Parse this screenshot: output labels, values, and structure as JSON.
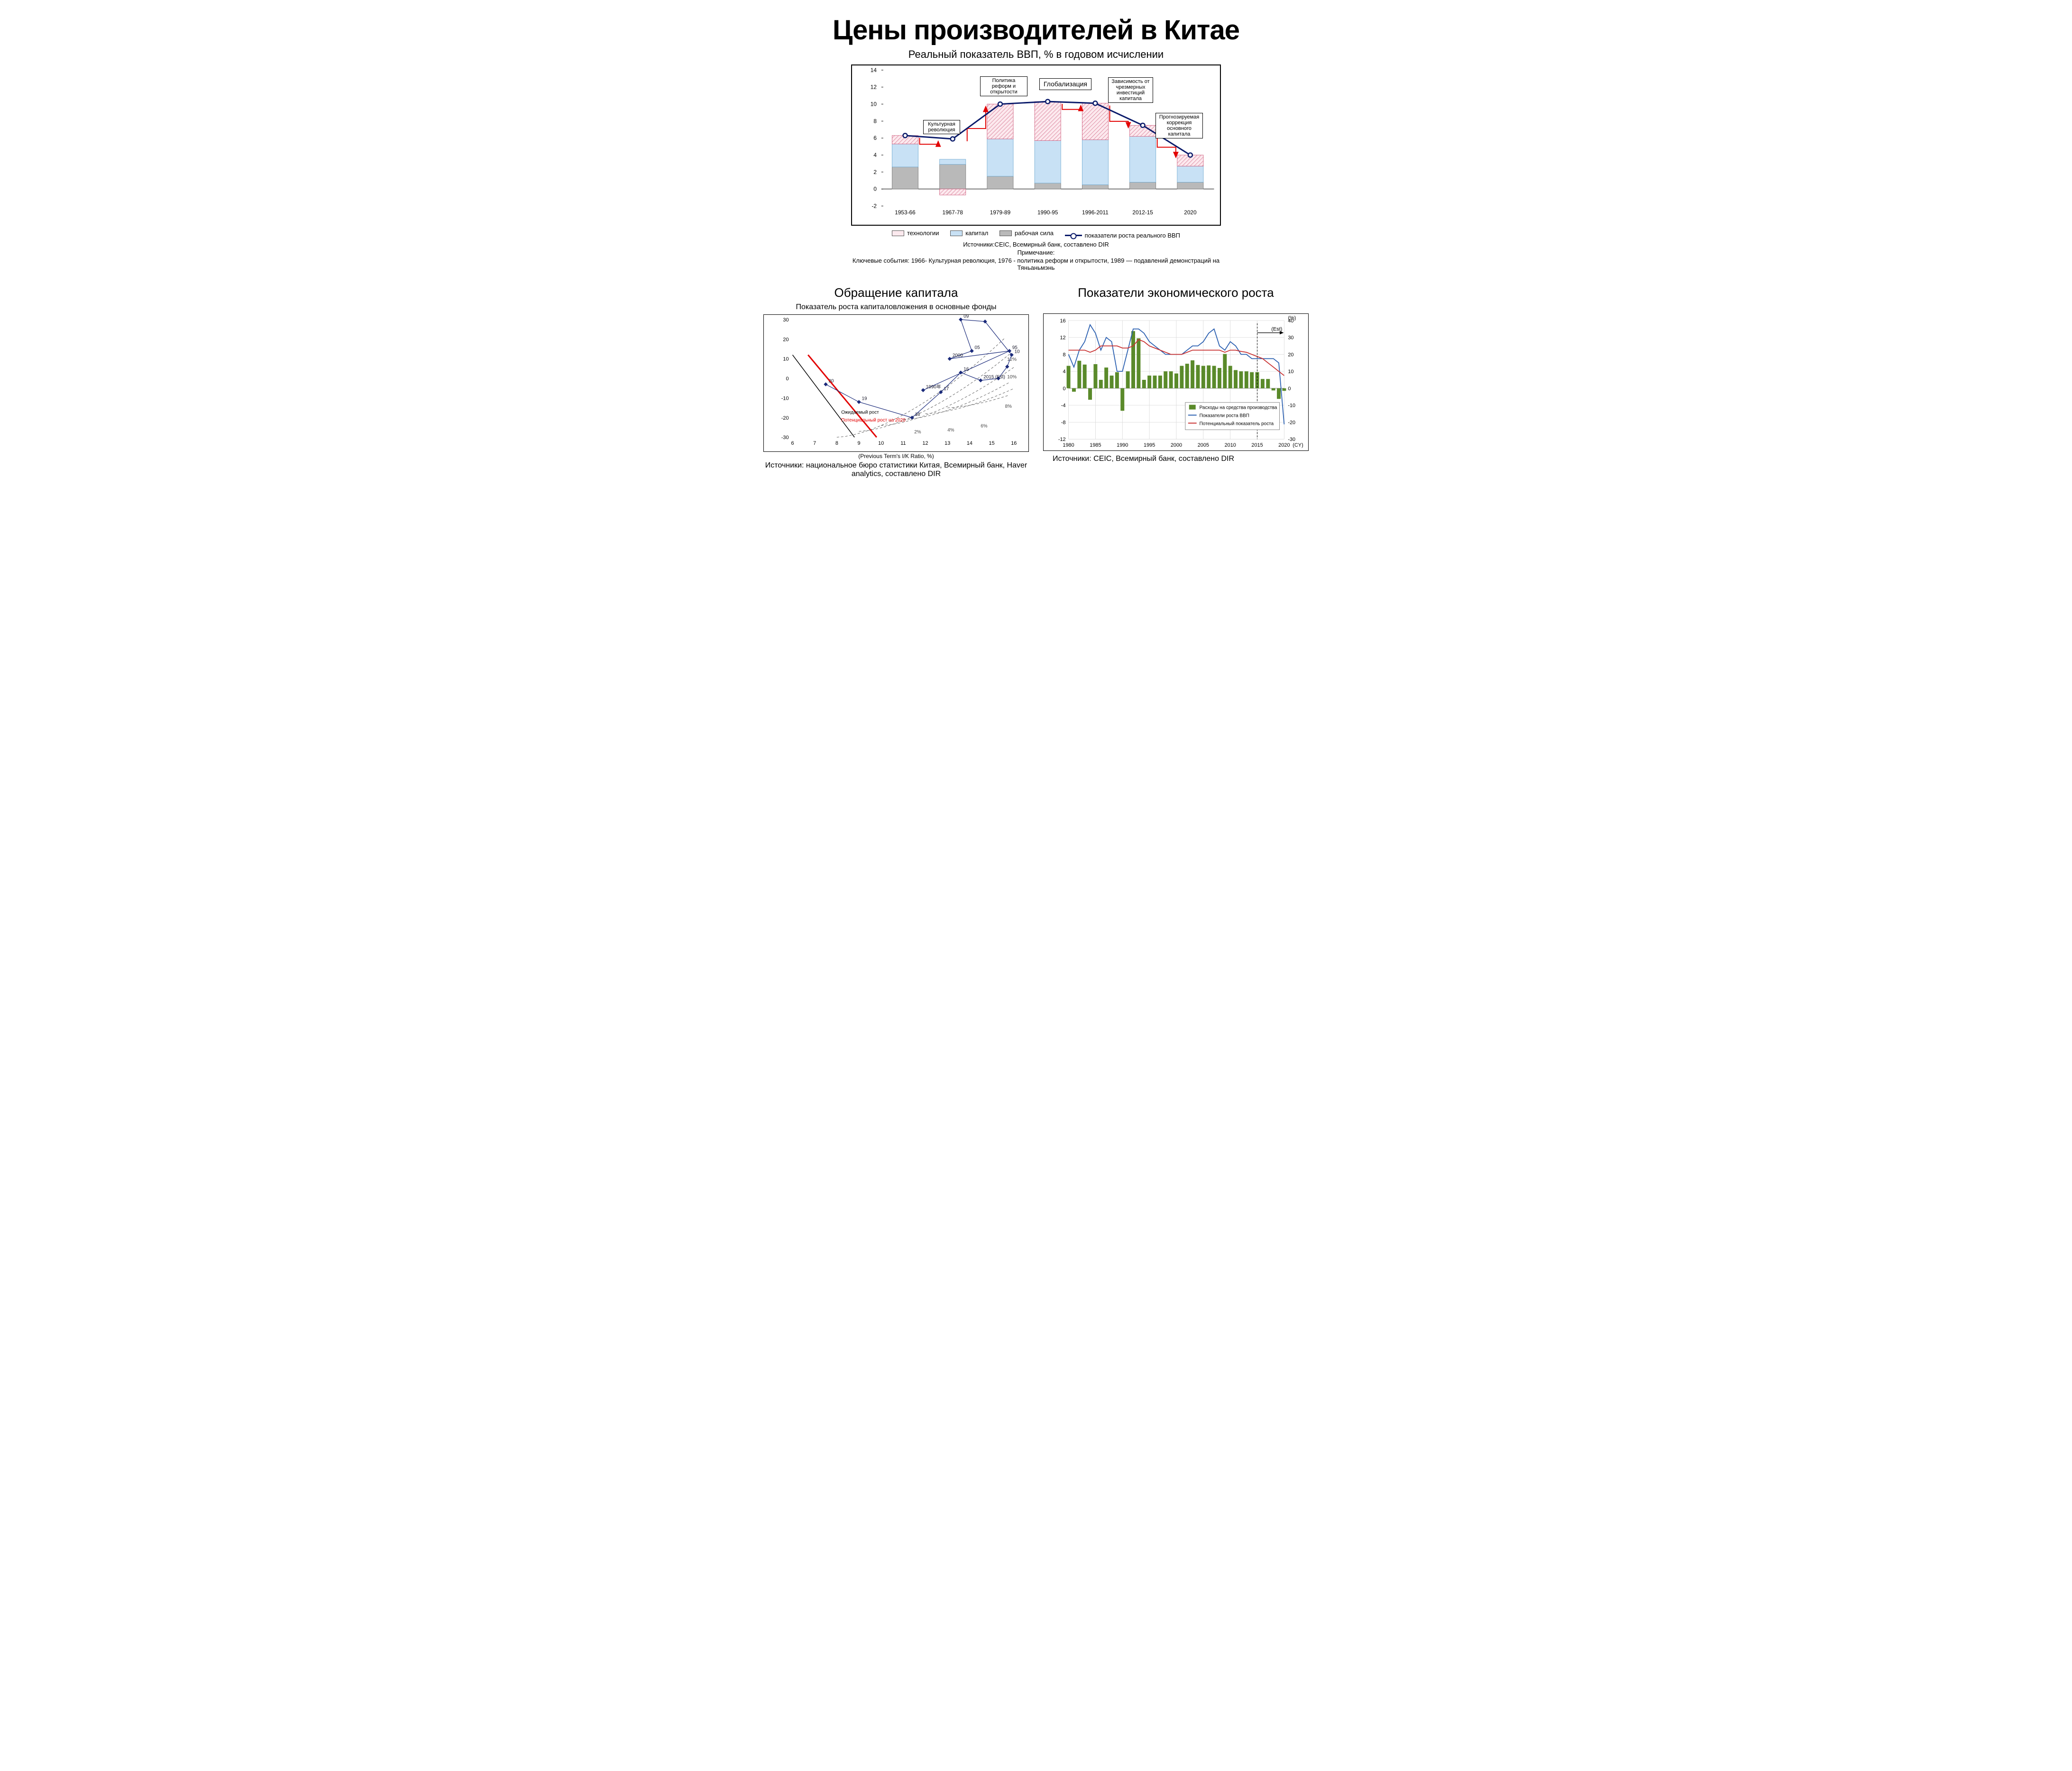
{
  "title": "Цены производителей в Китае",
  "chart1": {
    "subtitle": "Реальный показатель ВВП, % в годовом исчислении",
    "type": "stacked-bar-with-line",
    "y": {
      "min": -2,
      "max": 14,
      "step": 2,
      "ticks": [
        -2,
        0,
        2,
        4,
        6,
        8,
        10,
        12,
        14
      ]
    },
    "categories": [
      "1953-66",
      "1967-78",
      "1979-89",
      "1990-95",
      "1996-2011",
      "2012-15",
      "2020"
    ],
    "series": {
      "labor": {
        "label": "рабочая сила",
        "color_fill": "#b9b9b9",
        "color_stroke": "#777",
        "values": [
          2.6,
          2.9,
          1.5,
          0.7,
          0.5,
          0.8,
          0.8
        ]
      },
      "capital": {
        "label": "капитал",
        "color_fill": "#c8e1f5",
        "color_stroke": "#6aa7cf",
        "values": [
          2.7,
          0.6,
          4.4,
          5.0,
          5.3,
          5.4,
          1.9
        ]
      },
      "technology": {
        "label": "технологии",
        "color_fill": "#fce9ee",
        "color_stroke": "#cc5577",
        "hatched": true,
        "values": [
          1.0,
          -0.7,
          4.1,
          4.6,
          4.3,
          1.3,
          1.3
        ],
        "neg_index": 1
      }
    },
    "line": {
      "label": "показатели роста реального ВВП",
      "color": "#0a1a6a",
      "marker": {
        "shape": "circle",
        "fill": "#ffffff",
        "stroke": "#0a1a6a",
        "size": 9,
        "stroke_width": 2.5
      },
      "values": [
        6.3,
        5.9,
        10.0,
        10.3,
        10.1,
        7.5,
        4.0
      ],
      "line_width": 3
    },
    "annotations": [
      {
        "text": "Культурная революция",
        "target_index": 1
      },
      {
        "text": "Политика реформ и открытости",
        "target_index": 2
      },
      {
        "text": "Глобализация",
        "target_index": 3,
        "large": true
      },
      {
        "text": "Зависимость от чрезмерных инвестиций капитала",
        "target_index": 4
      },
      {
        "text": "Прогнозируемая коррекция основного капитала",
        "target_index": 6
      }
    ],
    "arrow_color": "#e20000",
    "source": "Источники:CEIC, Всемирный банк, составлено DIR",
    "note_label": "Примечание:",
    "note": "Ключевые события: 1966- Культурная революция, 1976 - политика реформ и открытости, 1989 — подавлений демонстраций на Тяньаньмэнь"
  },
  "chart2": {
    "title": "Обращение капитала",
    "subtitle": "Показатель роста капиталовложения в основные фонды",
    "type": "scatter-path-with-contours",
    "x": {
      "label": "(Previous Term's I/K Ratio, %)",
      "min": 6,
      "max": 16,
      "step": 1
    },
    "y": {
      "min": -30,
      "max": 30,
      "step": 10
    },
    "contour_labels": [
      "2%",
      "4%",
      "6%",
      "8%",
      "10%",
      "12%"
    ],
    "contour_color": "#555",
    "contour_dash": "5,4",
    "path_color": "#1a2a7a",
    "path_points": [
      {
        "x": 11.9,
        "y": -6,
        "label": "1990年"
      },
      {
        "x": 15.8,
        "y": 14,
        "label": "95"
      },
      {
        "x": 13.1,
        "y": 10,
        "label": "2000"
      },
      {
        "x": 14.1,
        "y": 14,
        "label": "05"
      },
      {
        "x": 13.6,
        "y": 30,
        "label": "09"
      },
      {
        "x": 14.7,
        "y": 29,
        "label": ""
      },
      {
        "x": 15.9,
        "y": 12,
        "label": "10"
      },
      {
        "x": 15.7,
        "y": 6,
        "label": ""
      },
      {
        "x": 15.3,
        "y": 0,
        "label": ""
      },
      {
        "x": 14.5,
        "y": -1,
        "label": "2015 (Est)"
      },
      {
        "x": 13.6,
        "y": 3,
        "label": "16"
      },
      {
        "x": 12.7,
        "y": -7,
        "label": "17"
      },
      {
        "x": 11.4,
        "y": -20,
        "label": "18"
      },
      {
        "x": 9.0,
        "y": -12,
        "label": "19"
      },
      {
        "x": 7.5,
        "y": -3,
        "label": "20"
      }
    ],
    "expected_line": {
      "label": "Ожидаемый рост",
      "color": "#000",
      "x1": 6,
      "y1": 12,
      "x2": 8.8,
      "y2": -30
    },
    "potential_line": {
      "label": "Потенциальный рост на 2020",
      "color": "#e20000",
      "x1": 6.7,
      "y1": 12,
      "x2": 9.8,
      "y2": -30,
      "width": 3
    },
    "source": "Источники: национальное бюро статистики Китая, Всемирный банк, Haver analytics, составлено DIR"
  },
  "chart3": {
    "title": "Показатели экономического роста",
    "type": "bars-with-dual-lines",
    "x": {
      "min": 1980,
      "max": 2020,
      "label_suffix": "(CY)",
      "ticks": [
        1980,
        1985,
        1990,
        1995,
        2000,
        2005,
        2010,
        2015,
        2020
      ]
    },
    "y_left": {
      "min": -12,
      "max": 16,
      "step": 4
    },
    "y_right": {
      "min": -30,
      "max": 40,
      "step": 10,
      "unit": "(%)"
    },
    "bars": {
      "label": "Расходы на средства производства",
      "color": "#5a8a2a",
      "values_by_year": {
        "1980": 5.3,
        "1981": -0.8,
        "1982": 6.5,
        "1983": 5.6,
        "1984": -2.7,
        "1985": 5.7,
        "1986": 2.0,
        "1987": 4.9,
        "1988": 3.0,
        "1989": 3.8,
        "1990": -5.3,
        "1991": 4.0,
        "1992": 13.5,
        "1993": 11.8,
        "1994": 2.0,
        "1995": 3.0,
        "1996": 3.0,
        "1997": 3.0,
        "1998": 4.0,
        "1999": 4.0,
        "2000": 3.5,
        "2001": 5.3,
        "2002": 5.8,
        "2003": 6.6,
        "2004": 5.5,
        "2005": 5.3,
        "2006": 5.4,
        "2007": 5.3,
        "2008": 4.8,
        "2009": 8.1,
        "2010": 5.3,
        "2011": 4.3,
        "2012": 4.0,
        "2013": 4.0,
        "2014": 3.8,
        "2015": 3.8,
        "2016": 2.2,
        "2017": 2.2,
        "2018": -0.5,
        "2019": -2.5,
        "2020": -0.6
      }
    },
    "line_gdp": {
      "label": "Показатели роста ВВП",
      "color": "#2a5fb0",
      "values_by_year": {
        "1980": 8,
        "1981": 5,
        "1982": 9,
        "1983": 11,
        "1984": 15,
        "1985": 13,
        "1986": 9,
        "1987": 12,
        "1988": 11,
        "1989": 4,
        "1990": 4,
        "1991": 9,
        "1992": 14,
        "1993": 14,
        "1994": 13,
        "1995": 11,
        "1996": 10,
        "1997": 9,
        "1998": 8,
        "1999": 8,
        "2000": 8,
        "2001": 8,
        "2002": 9,
        "2003": 10,
        "2004": 10,
        "2005": 11,
        "2006": 13,
        "2007": 14,
        "2008": 10,
        "2009": 9,
        "2010": 11,
        "2011": 10,
        "2012": 8,
        "2013": 8,
        "2014": 7,
        "2015": 7,
        "2016": 7,
        "2017": 7,
        "2018": 7,
        "2019": 6,
        "2020": -8.5
      }
    },
    "line_potential": {
      "label": "Потенциальный показатель роста",
      "color": "#c83030",
      "values_by_year": {
        "1980": 9,
        "1981": 9,
        "1982": 9,
        "1983": 9,
        "1984": 8.5,
        "1985": 9,
        "1986": 10,
        "1987": 10,
        "1988": 10,
        "1989": 10,
        "1990": 9.5,
        "1991": 9.5,
        "1992": 10,
        "1993": 11.5,
        "1994": 11,
        "1995": 10,
        "1996": 9.5,
        "1997": 9,
        "1998": 8.5,
        "1999": 8,
        "2000": 8,
        "2001": 8,
        "2002": 8.5,
        "2003": 9,
        "2004": 9,
        "2005": 9,
        "2006": 9,
        "2007": 9,
        "2008": 9,
        "2009": 8.5,
        "2010": 9,
        "2011": 9,
        "2012": 8.7,
        "2013": 8.5,
        "2014": 8,
        "2015": 7.5,
        "2016": 7,
        "2017": 6,
        "2018": 5,
        "2019": 4,
        "2020": 3
      }
    },
    "est_label": "(Est)",
    "est_year": 2015,
    "grid_color": "#d8d8d8",
    "source": "Источники: CEIC, Всемирный банк, составлено DIR"
  }
}
